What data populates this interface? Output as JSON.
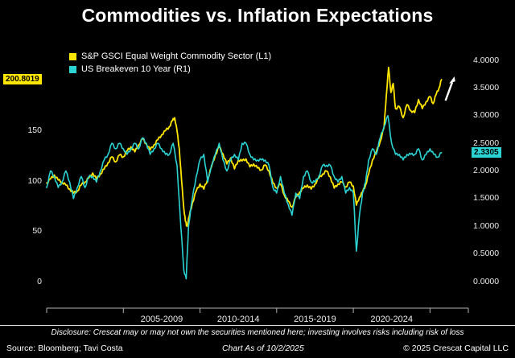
{
  "title": "Commodities vs. Inflation Expectations",
  "footer": {
    "disclosure": "Disclosure: Crescat may or may not own the securities mentioned here; investing involves risks including risk of loss",
    "source": "Source: Bloomberg; Tavi Costa",
    "as_of": "Chart As of 10/2/2025",
    "copyright": "© 2025 Crescat Capital LLC"
  },
  "chart_data": {
    "type": "line",
    "title": "Commodities vs. Inflation Expectations",
    "grid": false,
    "legend_position": "top-left",
    "background_color": "#000000",
    "left_axis": {
      "ticks": [
        0,
        50,
        100,
        150
      ],
      "last_value": 200.8019,
      "last_value_label": "200.8019",
      "badge_color": "#ffe600"
    },
    "right_axis": {
      "ticks": [
        0,
        0.5,
        1,
        1.5,
        2,
        2.5,
        3,
        3.5,
        4
      ],
      "tick_decimals": 4,
      "last_value": 2.3305,
      "last_value_label": "2.3305",
      "badge_color": "#2bd3d3"
    },
    "x_axis": {
      "range": [
        2000,
        2027.5
      ],
      "tick_years": [
        2005,
        2010,
        2015,
        2020,
        2025
      ],
      "period_labels": [
        {
          "text": "2005-2009",
          "center_year": 2007.5
        },
        {
          "text": "2010-2014",
          "center_year": 2012.5
        },
        {
          "text": "2015-2019",
          "center_year": 2017.5
        },
        {
          "text": "2020-2024",
          "center_year": 2022.5
        }
      ]
    },
    "annotations": [
      {
        "type": "arrow",
        "direction": "up",
        "anchor": "end-of-commodity-series",
        "color": "#ffffff"
      }
    ],
    "series": [
      {
        "name": "S&P GSCI Equal Weight Commodity Sector (L1)",
        "axis": "left",
        "color": "#ffe600",
        "points": [
          [
            2000,
            98
          ],
          [
            2000.25,
            102
          ],
          [
            2000.5,
            106
          ],
          [
            2000.75,
            101
          ],
          [
            2001,
            99
          ],
          [
            2001.25,
            96
          ],
          [
            2001.5,
            92
          ],
          [
            2001.75,
            88
          ],
          [
            2002,
            90
          ],
          [
            2002.25,
            96
          ],
          [
            2002.5,
            99
          ],
          [
            2002.75,
            103
          ],
          [
            2003,
            108
          ],
          [
            2003.25,
            102
          ],
          [
            2003.5,
            107
          ],
          [
            2003.75,
            112
          ],
          [
            2004,
            118
          ],
          [
            2004.25,
            124
          ],
          [
            2004.5,
            119
          ],
          [
            2004.75,
            126
          ],
          [
            2005,
            124
          ],
          [
            2005.25,
            130
          ],
          [
            2005.5,
            134
          ],
          [
            2005.75,
            129
          ],
          [
            2006,
            136
          ],
          [
            2006.25,
            142
          ],
          [
            2006.5,
            137
          ],
          [
            2006.75,
            131
          ],
          [
            2007,
            136
          ],
          [
            2007.25,
            141
          ],
          [
            2007.5,
            146
          ],
          [
            2007.75,
            150
          ],
          [
            2008,
            154
          ],
          [
            2008.2,
            160
          ],
          [
            2008.35,
            163
          ],
          [
            2008.5,
            150
          ],
          [
            2008.65,
            132
          ],
          [
            2008.8,
            100
          ],
          [
            2008.95,
            72
          ],
          [
            2009.05,
            60
          ],
          [
            2009.15,
            55
          ],
          [
            2009.3,
            65
          ],
          [
            2009.5,
            78
          ],
          [
            2009.75,
            90
          ],
          [
            2010,
            97
          ],
          [
            2010.25,
            92
          ],
          [
            2010.5,
            102
          ],
          [
            2010.75,
            114
          ],
          [
            2011,
            126
          ],
          [
            2011.25,
            134
          ],
          [
            2011.5,
            127
          ],
          [
            2011.75,
            117
          ],
          [
            2012,
            123
          ],
          [
            2012.25,
            112
          ],
          [
            2012.5,
            121
          ],
          [
            2012.75,
            120
          ],
          [
            2013,
            122
          ],
          [
            2013.25,
            114
          ],
          [
            2013.5,
            117
          ],
          [
            2013.75,
            113
          ],
          [
            2014,
            111
          ],
          [
            2014.25,
            116
          ],
          [
            2014.5,
            110
          ],
          [
            2014.75,
            98
          ],
          [
            2015,
            93
          ],
          [
            2015.25,
            97
          ],
          [
            2015.5,
            86
          ],
          [
            2015.75,
            80
          ],
          [
            2016,
            74
          ],
          [
            2016.25,
            84
          ],
          [
            2016.5,
            89
          ],
          [
            2016.75,
            93
          ],
          [
            2017,
            96
          ],
          [
            2017.25,
            92
          ],
          [
            2017.5,
            97
          ],
          [
            2017.75,
            103
          ],
          [
            2018,
            107
          ],
          [
            2018.25,
            110
          ],
          [
            2018.5,
            104
          ],
          [
            2018.75,
            93
          ],
          [
            2019,
            97
          ],
          [
            2019.25,
            99
          ],
          [
            2019.5,
            94
          ],
          [
            2019.75,
            99
          ],
          [
            2020,
            95
          ],
          [
            2020.2,
            76
          ],
          [
            2020.4,
            84
          ],
          [
            2020.6,
            89
          ],
          [
            2020.8,
            96
          ],
          [
            2021,
            107
          ],
          [
            2021.25,
            121
          ],
          [
            2021.5,
            129
          ],
          [
            2021.75,
            139
          ],
          [
            2022,
            153
          ],
          [
            2022.15,
            185
          ],
          [
            2022.3,
            213
          ],
          [
            2022.45,
            188
          ],
          [
            2022.6,
            197
          ],
          [
            2022.75,
            172
          ],
          [
            2023,
            174
          ],
          [
            2023.25,
            163
          ],
          [
            2023.5,
            176
          ],
          [
            2023.75,
            170
          ],
          [
            2024,
            168
          ],
          [
            2024.25,
            181
          ],
          [
            2024.5,
            172
          ],
          [
            2024.75,
            179
          ],
          [
            2025,
            184
          ],
          [
            2025.2,
            177
          ],
          [
            2025.4,
            186
          ],
          [
            2025.6,
            193
          ],
          [
            2025.75,
            200.8019
          ]
        ]
      },
      {
        "name": "US Breakeven 10 Year (R1)",
        "axis": "right",
        "color": "#2bd3d3",
        "points": [
          [
            2000,
            1.7
          ],
          [
            2000.25,
            2.0
          ],
          [
            2000.5,
            1.9
          ],
          [
            2000.75,
            1.7
          ],
          [
            2001,
            1.8
          ],
          [
            2001.25,
            2.0
          ],
          [
            2001.5,
            1.8
          ],
          [
            2001.75,
            1.5
          ],
          [
            2002,
            1.7
          ],
          [
            2002.25,
            1.9
          ],
          [
            2002.5,
            1.7
          ],
          [
            2002.75,
            1.9
          ],
          [
            2003,
            1.9
          ],
          [
            2003.25,
            1.8
          ],
          [
            2003.5,
            2.0
          ],
          [
            2003.75,
            2.2
          ],
          [
            2004,
            2.3
          ],
          [
            2004.25,
            2.5
          ],
          [
            2004.5,
            2.4
          ],
          [
            2004.75,
            2.5
          ],
          [
            2005,
            2.4
          ],
          [
            2005.25,
            2.3
          ],
          [
            2005.5,
            2.4
          ],
          [
            2005.75,
            2.5
          ],
          [
            2006,
            2.4
          ],
          [
            2006.25,
            2.6
          ],
          [
            2006.5,
            2.5
          ],
          [
            2006.75,
            2.3
          ],
          [
            2007,
            2.4
          ],
          [
            2007.25,
            2.5
          ],
          [
            2007.5,
            2.4
          ],
          [
            2007.75,
            2.3
          ],
          [
            2008,
            2.3
          ],
          [
            2008.25,
            2.5
          ],
          [
            2008.5,
            2.1
          ],
          [
            2008.75,
            1.0
          ],
          [
            2008.95,
            0.2
          ],
          [
            2009.1,
            0.05
          ],
          [
            2009.25,
            1.0
          ],
          [
            2009.5,
            1.5
          ],
          [
            2009.75,
            1.9
          ],
          [
            2010,
            2.2
          ],
          [
            2010.25,
            2.3
          ],
          [
            2010.5,
            1.8
          ],
          [
            2010.75,
            2.1
          ],
          [
            2011,
            2.3
          ],
          [
            2011.25,
            2.5
          ],
          [
            2011.5,
            2.2
          ],
          [
            2011.75,
            2.0
          ],
          [
            2012,
            2.2
          ],
          [
            2012.25,
            2.3
          ],
          [
            2012.5,
            2.2
          ],
          [
            2012.75,
            2.5
          ],
          [
            2013,
            2.5
          ],
          [
            2013.25,
            2.3
          ],
          [
            2013.5,
            2.2
          ],
          [
            2013.75,
            2.2
          ],
          [
            2014,
            2.2
          ],
          [
            2014.25,
            2.2
          ],
          [
            2014.5,
            2.1
          ],
          [
            2014.75,
            1.7
          ],
          [
            2015,
            1.6
          ],
          [
            2015.25,
            1.9
          ],
          [
            2015.5,
            1.6
          ],
          [
            2015.75,
            1.4
          ],
          [
            2016,
            1.2
          ],
          [
            2016.25,
            1.6
          ],
          [
            2016.5,
            1.5
          ],
          [
            2016.75,
            1.9
          ],
          [
            2017,
            2.0
          ],
          [
            2017.25,
            1.8
          ],
          [
            2017.5,
            1.8
          ],
          [
            2017.75,
            1.9
          ],
          [
            2018,
            2.1
          ],
          [
            2018.25,
            2.1
          ],
          [
            2018.5,
            2.1
          ],
          [
            2018.75,
            1.9
          ],
          [
            2019,
            1.8
          ],
          [
            2019.25,
            1.9
          ],
          [
            2019.5,
            1.6
          ],
          [
            2019.75,
            1.7
          ],
          [
            2020,
            1.6
          ],
          [
            2020.2,
            0.55
          ],
          [
            2020.4,
            1.2
          ],
          [
            2020.6,
            1.6
          ],
          [
            2020.8,
            1.8
          ],
          [
            2021,
            2.2
          ],
          [
            2021.25,
            2.4
          ],
          [
            2021.5,
            2.3
          ],
          [
            2021.75,
            2.6
          ],
          [
            2022,
            2.8
          ],
          [
            2022.25,
            3.0
          ],
          [
            2022.5,
            2.5
          ],
          [
            2022.75,
            2.3
          ],
          [
            2023,
            2.3
          ],
          [
            2023.25,
            2.2
          ],
          [
            2023.5,
            2.3
          ],
          [
            2023.75,
            2.3
          ],
          [
            2024,
            2.3
          ],
          [
            2024.25,
            2.4
          ],
          [
            2024.5,
            2.2
          ],
          [
            2024.75,
            2.3
          ],
          [
            2025,
            2.4
          ],
          [
            2025.25,
            2.3
          ],
          [
            2025.5,
            2.25
          ],
          [
            2025.75,
            2.3305
          ]
        ]
      }
    ]
  }
}
